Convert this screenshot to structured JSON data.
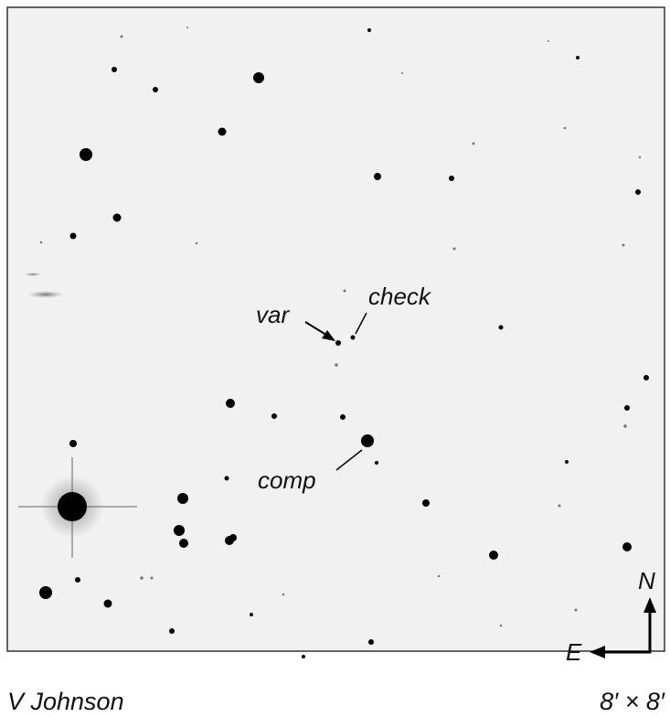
{
  "labels": {
    "var": "var",
    "check": "check",
    "comp": "comp"
  },
  "compass": {
    "north": "N",
    "east": "E"
  },
  "caption": {
    "filter": "V Johnson",
    "field": "8′ × 8′"
  }
}
